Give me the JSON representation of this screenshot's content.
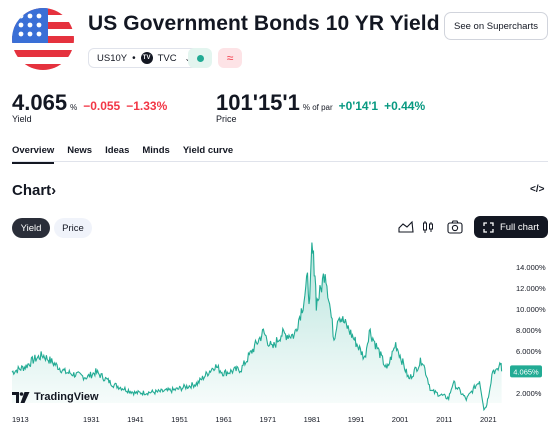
{
  "header": {
    "title": "US Government Bonds 10 YR Yield",
    "supercharts_label": "See on Supercharts",
    "symbol": "US10Y",
    "exchange": "TVC",
    "exchange_logo": "TV"
  },
  "quote": {
    "yield_value": "4.065",
    "yield_unit": "%",
    "yield_change": "−0.055",
    "yield_change_pct": "−1.33%",
    "yield_label": "Yield",
    "price_value": "101'15'1",
    "price_unit": "% of par",
    "price_change": "+0'14'1",
    "price_change_pct": "+0.44%",
    "price_label": "Price"
  },
  "tabs": [
    "Overview",
    "News",
    "Ideas",
    "Minds",
    "Yield curve"
  ],
  "chart_section": {
    "heading": "Chart",
    "heading_arrow": "›",
    "embed_icon": "</>",
    "yield_btn": "Yield",
    "price_btn": "Price",
    "full_chart": "Full chart",
    "brand": "TradingView"
  },
  "colors": {
    "line": "#22ab94",
    "negative": "#f23645",
    "positive": "#089981",
    "text": "#131722"
  },
  "icons": {
    "area_chart": "area-chart-icon",
    "candles": "candlestick-icon",
    "camera": "camera-icon",
    "fullscreen": "fullscreen-icon",
    "flag": "us-flag-icon"
  },
  "chart_data": {
    "type": "area",
    "x": [
      1913,
      1916,
      1918,
      1920,
      1921,
      1925,
      1930,
      1932,
      1936,
      1941,
      1946,
      1950,
      1955,
      1959,
      1961,
      1965,
      1966,
      1970,
      1972,
      1974,
      1977,
      1979,
      1980,
      1980.5,
      1981,
      1981.7,
      1982,
      1983,
      1984,
      1986,
      1987,
      1989,
      1993,
      1994,
      1998,
      2000,
      2003,
      2006,
      2008,
      2012,
      2013,
      2016,
      2019,
      2020,
      2020.5,
      2021,
      2022,
      2023,
      2023.8,
      2024
    ],
    "y": [
      4.0,
      4.5,
      5.2,
      5.6,
      5.3,
      4.0,
      3.5,
      4.0,
      2.8,
      2.0,
      2.1,
      2.3,
      2.9,
      4.6,
      3.9,
      4.3,
      5.0,
      7.8,
      6.2,
      7.6,
      7.5,
      10.5,
      12.8,
      10.5,
      15.8,
      13.5,
      10.5,
      11.8,
      13.8,
      7.2,
      9.5,
      8.3,
      5.3,
      8.0,
      4.2,
      6.7,
      3.3,
      5.2,
      2.2,
      1.5,
      3.0,
      1.4,
      3.2,
      0.5,
      0.7,
      1.7,
      4.2,
      4.0,
      5.0,
      4.065
    ],
    "x_ticks": [
      "1913",
      "1931",
      "1941",
      "1951",
      "1961",
      "1971",
      "1981",
      "1991",
      "2001",
      "2011",
      "2021"
    ],
    "y_ticks": [
      "14.000%",
      "12.000%",
      "10.000%",
      "8.000%",
      "6.000%",
      "2.000%"
    ],
    "last_value_label": "4.065%",
    "ylim": [
      0,
      16
    ],
    "xlim": [
      1913,
      2025
    ]
  }
}
